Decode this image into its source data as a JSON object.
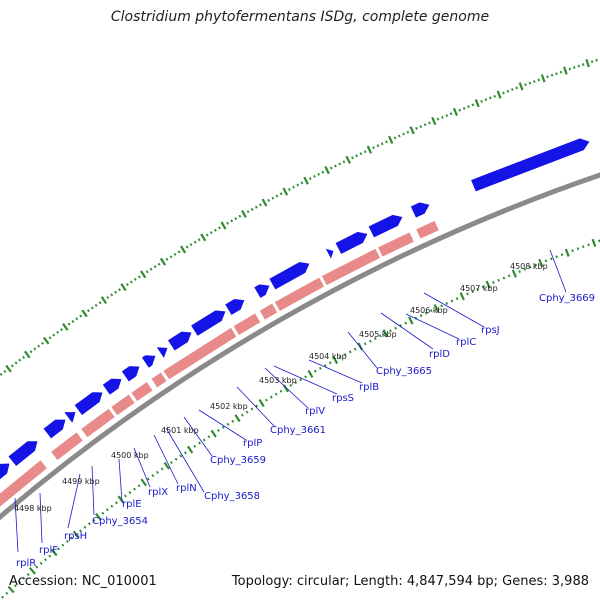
{
  "title": "Clostridium phytofermentans ISDg, complete genome",
  "footer": {
    "accession": "Accession: NC_010001",
    "topology": "Topology: circular; Length: 4,847,594 bp; Genes: 3,988"
  },
  "colors": {
    "forward_gene": "#1414e6",
    "reverse_gene": "#e88a8a",
    "backbone": "#8a8a8a",
    "ticks": "#2e8b2e",
    "label": "#1a1acc"
  },
  "kbp_ticks": [
    "4498 kbp",
    "4499 kbp",
    "4500 kbp",
    "4501 kbp",
    "4502 kbp",
    "4503 kbp",
    "4504 kbp",
    "4505 kbp",
    "4506 kbp",
    "4507 kbp",
    "4508 kbp"
  ],
  "genes": [
    "rplR",
    "rplF",
    "rpsH",
    "Cphy_3654",
    "rplE",
    "rplX",
    "rplN",
    "Cphy_3658",
    "Cphy_3659",
    "rplP",
    "Cphy_3661",
    "rplV",
    "rpsS",
    "rplB",
    "Cphy_3665",
    "rplD",
    "rplC",
    "rpsJ",
    "Cphy_3669"
  ]
}
